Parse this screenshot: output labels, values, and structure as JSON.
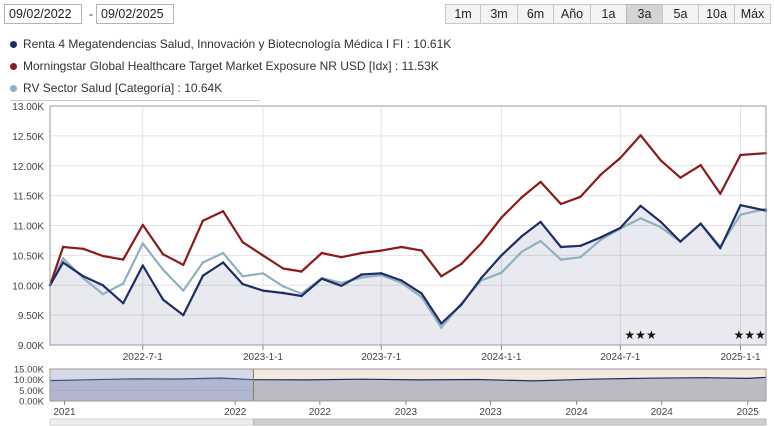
{
  "date_range": {
    "from": "09/02/2022",
    "separator": "-",
    "to": "09/02/2025"
  },
  "range_buttons": [
    {
      "label": "1m"
    },
    {
      "label": "3m"
    },
    {
      "label": "6m"
    },
    {
      "label": "Año"
    },
    {
      "label": "1a"
    },
    {
      "label": "3a",
      "active": true
    },
    {
      "label": "5a"
    },
    {
      "label": "10a"
    },
    {
      "label": "Máx"
    }
  ],
  "legend": [
    {
      "text": "Renta 4 Megatendencias Salud, Innovación y Biotecnología Médica I FI : 10.61K",
      "color": "#1f2d66"
    },
    {
      "text": "Morningstar Global Healthcare Target Market Exposure NR USD [Idx] : 11.53K",
      "color": "#8c1a1a"
    },
    {
      "text": "RV Sector Salud [Categoría] : 10.64K",
      "color": "#8fb1bf"
    }
  ],
  "chart_data": [
    {
      "type": "line",
      "y_ticks": [
        "13.00K",
        "12.50K",
        "12.00K",
        "11.50K",
        "11.00K",
        "10.50K",
        "10.00K",
        "9.50K",
        "9.00K"
      ],
      "ylim": [
        9000,
        13000
      ],
      "x_ticks": [
        {
          "label": "2022-7-1",
          "date": "2022-07-01"
        },
        {
          "label": "2023-1-1",
          "date": "2023-01-01"
        },
        {
          "label": "2023-7-1",
          "date": "2023-07-01"
        },
        {
          "label": "2024-1-1",
          "date": "2024-01-01"
        },
        {
          "label": "2024-7-1",
          "date": "2024-07-01"
        },
        {
          "label": "2025-1-1",
          "date": "2025-01-01"
        }
      ],
      "xlim": [
        "2022-02-09",
        "2025-02-09"
      ],
      "grid": true,
      "dates": [
        "2022-02-09",
        "2022-03-01",
        "2022-04-01",
        "2022-05-01",
        "2022-06-01",
        "2022-07-01",
        "2022-08-01",
        "2022-09-01",
        "2022-10-01",
        "2022-11-01",
        "2022-12-01",
        "2023-01-01",
        "2023-02-01",
        "2023-03-01",
        "2023-04-01",
        "2023-05-01",
        "2023-06-01",
        "2023-07-01",
        "2023-08-01",
        "2023-09-01",
        "2023-10-01",
        "2023-11-01",
        "2023-12-01",
        "2024-01-01",
        "2024-02-01",
        "2024-03-01",
        "2024-04-01",
        "2024-05-01",
        "2024-06-01",
        "2024-07-01",
        "2024-08-01",
        "2024-09-01",
        "2024-10-01",
        "2024-11-01",
        "2024-12-01",
        "2025-01-01",
        "2025-02-09"
      ],
      "series": [
        {
          "name": "Renta 4 Megatendencias Salud, Innovación y Biotecnología Médica I FI",
          "color": "#1f2d66",
          "values": [
            10000,
            10380,
            10150,
            10000,
            9700,
            10330,
            9760,
            9500,
            10160,
            10380,
            10020,
            9910,
            9870,
            9820,
            10110,
            9990,
            10180,
            10200,
            10080,
            9860,
            9360,
            9680,
            10120,
            10500,
            10820,
            11060,
            10640,
            10660,
            10800,
            10960,
            11330,
            11060,
            10730,
            11030,
            10620,
            11340,
            11250
          ]
        },
        {
          "name": "Morningstar Global Healthcare Target Market Exposure NR USD [Idx]",
          "color": "#8c1a1a",
          "values": [
            10000,
            10640,
            10610,
            10490,
            10430,
            11010,
            10520,
            10340,
            11080,
            11240,
            10720,
            10500,
            10280,
            10230,
            10540,
            10470,
            10540,
            10580,
            10640,
            10580,
            10150,
            10360,
            10700,
            11130,
            11470,
            11730,
            11360,
            11480,
            11850,
            12130,
            12510,
            12090,
            11800,
            12010,
            11530,
            12180,
            12210
          ]
        },
        {
          "name": "RV Sector Salud [Categoría]",
          "color": "#8fb1bf",
          "values": [
            10000,
            10450,
            10120,
            9850,
            10030,
            10700,
            10260,
            9910,
            10380,
            10540,
            10150,
            10200,
            9980,
            9860,
            10120,
            10040,
            10130,
            10170,
            10040,
            9800,
            9290,
            9700,
            10080,
            10210,
            10560,
            10740,
            10430,
            10470,
            10760,
            10950,
            11120,
            10970,
            10730,
            11030,
            10650,
            11180,
            11280
          ]
        }
      ],
      "ratings": [
        {
          "date": "2024-08-01",
          "text": "★★★"
        },
        {
          "date": "2025-01-15",
          "text": "★★★"
        }
      ]
    },
    {
      "type": "area",
      "role": "navigator",
      "y_ticks": [
        "15.00K",
        "10.00K",
        "5.00K",
        "0.00K"
      ],
      "ylim": [
        0,
        15000
      ],
      "x_ticks": [
        {
          "label": "2021",
          "date": "2021-01-01"
        },
        {
          "label": "2022",
          "date": "2022-01-01"
        },
        {
          "label": "2022",
          "date": "2022-07-01"
        },
        {
          "label": "2023",
          "date": "2023-01-01"
        },
        {
          "label": "2023",
          "date": "2023-07-01"
        },
        {
          "label": "2024",
          "date": "2024-01-01"
        },
        {
          "label": "2024",
          "date": "2024-07-01"
        },
        {
          "label": "2025",
          "date": "2025-01-01"
        }
      ],
      "xlim": [
        "2020-12-01",
        "2025-02-09"
      ],
      "selected_range": [
        "2022-02-09",
        "2025-02-09"
      ],
      "dates": [
        "2020-12-01",
        "2021-03-01",
        "2021-06-01",
        "2021-09-01",
        "2021-12-01",
        "2022-02-09",
        "2022-06-01",
        "2022-10-01",
        "2023-02-01",
        "2023-06-01",
        "2023-10-01",
        "2024-02-01",
        "2024-06-01",
        "2024-10-01",
        "2025-01-01",
        "2025-02-09"
      ],
      "values": [
        9500,
        10000,
        10400,
        10300,
        10800,
        10000,
        9900,
        10200,
        9900,
        10100,
        9400,
        10200,
        10700,
        10900,
        10600,
        11100
      ]
    }
  ]
}
